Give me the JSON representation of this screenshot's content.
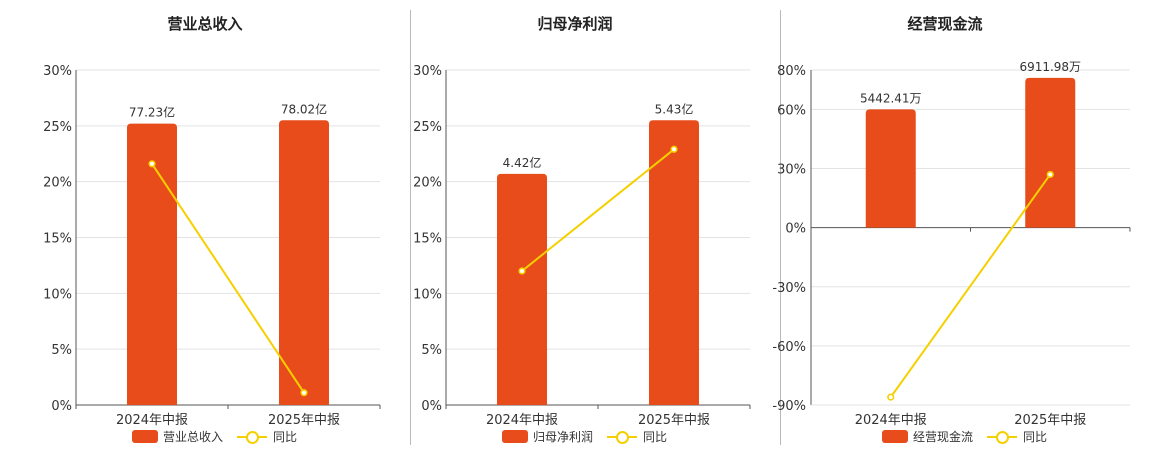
{
  "colors": {
    "bar": "#e84c1b",
    "line": "#f5d000",
    "grid": "#e3e3e3",
    "axis": "#555555"
  },
  "chart_data": [
    {
      "type": "bar+line",
      "title": "营业总收入",
      "categories": [
        "2024年中报",
        "2025年中报"
      ],
      "y_ticks": [
        "30%",
        "25%",
        "20%",
        "15%",
        "10%",
        "5%",
        "0%"
      ],
      "ylim": [
        0,
        30
      ],
      "series": [
        {
          "name": "营业总收入",
          "kind": "bar",
          "values": [
            25.2,
            25.5
          ],
          "labels": [
            "77.23亿",
            "78.02亿"
          ]
        },
        {
          "name": "同比",
          "kind": "line",
          "values": [
            21.6,
            1.1
          ]
        }
      ],
      "legend": [
        "营业总收入",
        "同比"
      ]
    },
    {
      "type": "bar+line",
      "title": "归母净利润",
      "categories": [
        "2024年中报",
        "2025年中报"
      ],
      "y_ticks": [
        "30%",
        "25%",
        "20%",
        "15%",
        "10%",
        "5%",
        "0%"
      ],
      "ylim": [
        0,
        30
      ],
      "series": [
        {
          "name": "归母净利润",
          "kind": "bar",
          "values": [
            20.7,
            25.5
          ],
          "labels": [
            "4.42亿",
            "5.43亿"
          ]
        },
        {
          "name": "同比",
          "kind": "line",
          "values": [
            12.0,
            22.9
          ]
        }
      ],
      "legend": [
        "归母净利润",
        "同比"
      ]
    },
    {
      "type": "bar+line",
      "title": "经营现金流",
      "categories": [
        "2024年中报",
        "2025年中报"
      ],
      "y_ticks": [
        "80%",
        "60%",
        "30%",
        "0%",
        "-30%",
        "-60%",
        "-90%"
      ],
      "ylim": [
        -90,
        80
      ],
      "series": [
        {
          "name": "经营现金流",
          "kind": "bar",
          "values": [
            60.0,
            76.0
          ],
          "labels": [
            "5442.41万",
            "6911.98万"
          ]
        },
        {
          "name": "同比",
          "kind": "line",
          "values": [
            -86.0,
            27.0
          ]
        }
      ],
      "legend": [
        "经营现金流",
        "同比"
      ]
    }
  ]
}
